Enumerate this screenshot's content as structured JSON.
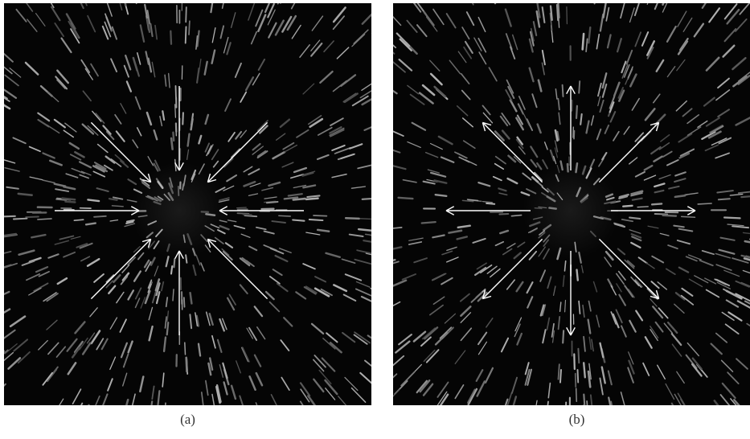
{
  "panels": [
    {
      "id": "a",
      "caption": "(a)",
      "arrow_direction": "inward",
      "arrow_count": 8
    },
    {
      "id": "b",
      "caption": "(b)",
      "arrow_direction": "outward",
      "arrow_count": 8
    }
  ],
  "colors": {
    "background": "#050505",
    "streak": "#9a9a9a",
    "arrow": "#ffffff",
    "page": "#ffffff"
  }
}
